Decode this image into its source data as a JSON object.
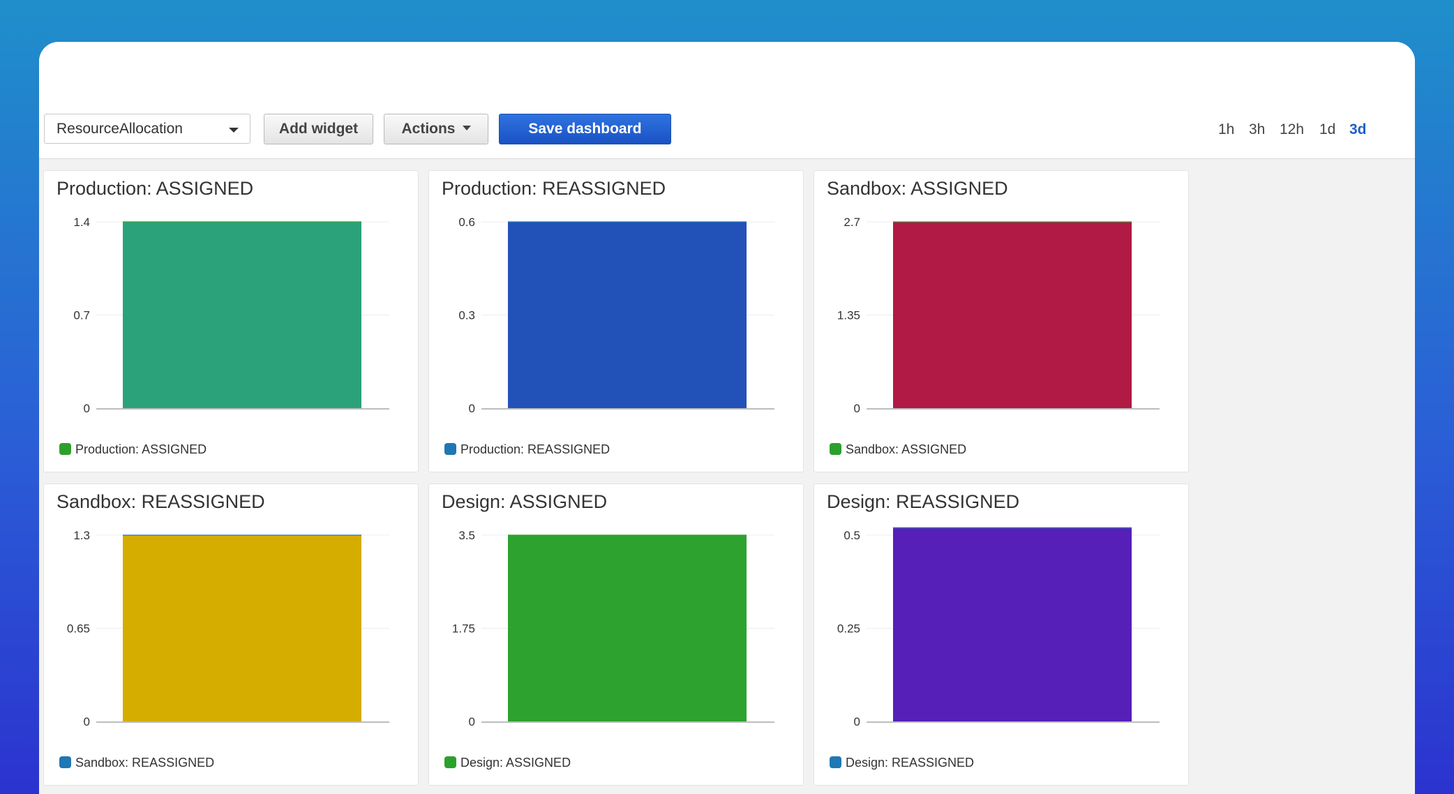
{
  "toolbar": {
    "dashboard_select": "ResourceAllocation",
    "add_widget_label": "Add widget",
    "actions_label": "Actions",
    "save_label": "Save dashboard"
  },
  "time_ranges": [
    {
      "label": "1h",
      "active": false
    },
    {
      "label": "3h",
      "active": false
    },
    {
      "label": "12h",
      "active": false
    },
    {
      "label": "1d",
      "active": false
    },
    {
      "label": "3d",
      "active": true
    }
  ],
  "chart_data": [
    {
      "type": "bar",
      "title": "Production: ASSIGNED",
      "ylim": [
        0,
        1.4
      ],
      "yticks": [
        "0",
        "0.7",
        "1.4"
      ],
      "values": [
        1.4
      ],
      "bar_color": "#2ca27a",
      "legend": {
        "label": "Production: ASSIGNED",
        "color": "#2ca02c"
      }
    },
    {
      "type": "bar",
      "title": "Production: REASSIGNED",
      "ylim": [
        0,
        0.6
      ],
      "yticks": [
        "0",
        "0.3",
        "0.6"
      ],
      "values": [
        0.6
      ],
      "bar_color": "#2251b8",
      "legend": {
        "label": "Production: REASSIGNED",
        "color": "#1f77b4"
      }
    },
    {
      "type": "bar",
      "title": "Sandbox: ASSIGNED",
      "ylim": [
        0,
        2.7
      ],
      "yticks": [
        "0",
        "1.35",
        "2.7"
      ],
      "values": [
        2.7
      ],
      "bar_color": "#b01a44",
      "legend": {
        "label": "Sandbox: ASSIGNED",
        "color": "#2ca02c"
      }
    },
    {
      "type": "bar",
      "title": "Sandbox: REASSIGNED",
      "ylim": [
        0,
        1.3
      ],
      "yticks": [
        "0",
        "0.65",
        "1.3"
      ],
      "values": [
        1.3
      ],
      "bar_color": "#d4ad00",
      "legend": {
        "label": "Sandbox: REASSIGNED",
        "color": "#1f77b4"
      }
    },
    {
      "type": "bar",
      "title": "Design: ASSIGNED",
      "ylim": [
        0,
        3.5
      ],
      "yticks": [
        "0",
        "1.75",
        "3.5"
      ],
      "values": [
        3.5
      ],
      "bar_color": "#2da22f",
      "legend": {
        "label": "Design: ASSIGNED",
        "color": "#2ca02c"
      }
    },
    {
      "type": "bar",
      "title": "Design: REASSIGNED",
      "ylim": [
        0,
        0.5
      ],
      "yticks": [
        "0",
        "0.25",
        "0.5"
      ],
      "values": [
        0.52
      ],
      "bar_color": "#551fb8",
      "legend": {
        "label": "Design: REASSIGNED",
        "color": "#1f77b4"
      }
    }
  ]
}
